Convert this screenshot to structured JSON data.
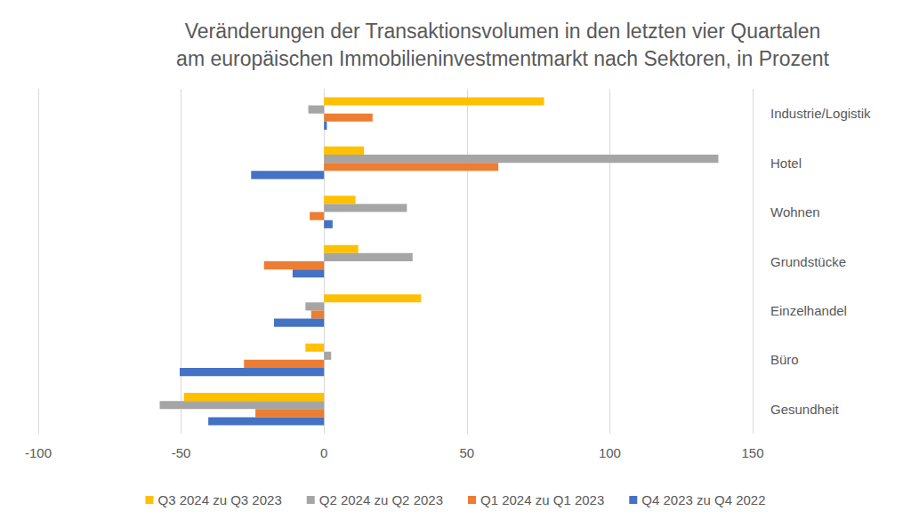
{
  "chart_data": {
    "type": "bar",
    "orientation": "horizontal",
    "title": "Veränderungen der Transaktionsvolumen in den letzten vier Quartalen\nam europäischen Immobilieninvestmentmarkt nach Sektoren, in Prozent",
    "categories": [
      "Industrie/Logistik",
      "Hotel",
      "Wohnen",
      "Grundstücke",
      "Einzelhandel",
      "Büro",
      "Gesundheit"
    ],
    "series": [
      {
        "name": "Q3 2024 zu Q3 2023",
        "color": "#FFC000",
        "values": [
          77,
          14,
          11,
          12,
          34,
          -6.5,
          -49
        ]
      },
      {
        "name": "Q2 2024 zu Q2 2023",
        "color": "#A5A5A5",
        "values": [
          -5.5,
          138,
          29,
          31,
          -6.5,
          2.5,
          -57.5
        ]
      },
      {
        "name": "Q1 2024 zu Q1 2023",
        "color": "#ED7D31",
        "values": [
          17,
          61,
          -5,
          -21,
          -4.5,
          -28,
          -24
        ]
      },
      {
        "name": "Q4 2023 zu Q4 2022",
        "color": "#4472C4",
        "values": [
          1,
          -25.5,
          3,
          -11,
          -17.5,
          -50.5,
          -40.5
        ]
      }
    ],
    "xlim": [
      -100,
      150
    ],
    "xticks": [
      -100,
      -50,
      0,
      50,
      100,
      150
    ],
    "grid": true,
    "legend": "bottom"
  }
}
